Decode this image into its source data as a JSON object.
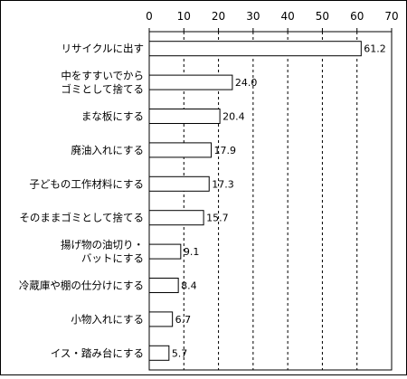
{
  "chart_data": {
    "type": "bar",
    "orientation": "horizontal",
    "title": "",
    "xlabel": "",
    "ylabel": "",
    "xlim": [
      0,
      70
    ],
    "ticks": [
      0,
      10,
      20,
      30,
      40,
      50,
      60,
      70
    ],
    "tick_labels": [
      "0",
      "10",
      "20",
      "30",
      "40",
      "50",
      "60",
      "70"
    ],
    "categories": [
      [
        "リサイクルに出す"
      ],
      [
        "中をすすいでから",
        "ゴミとして捨てる"
      ],
      [
        "まな板にする"
      ],
      [
        "廃油入れにする"
      ],
      [
        "子どもの工作材料にする"
      ],
      [
        "そのままゴミとして捨てる"
      ],
      [
        "揚げ物の油切り・",
        "バットにする"
      ],
      [
        "冷蔵庫や棚の仕分けにする"
      ],
      [
        "小物入れにする"
      ],
      [
        "イス・踏み台にする"
      ]
    ],
    "values": [
      61.2,
      24.0,
      20.4,
      17.9,
      17.3,
      15.7,
      9.1,
      8.4,
      6.7,
      5.7
    ],
    "value_labels": [
      "61.2",
      "24.0",
      "20.4",
      "17.9",
      "17.3",
      "15.7",
      "9.1",
      "8.4",
      "6.7",
      "5.7"
    ],
    "grid": "vertical dashed",
    "legend": "none",
    "colors": {
      "bar": "#ffffff",
      "bar_stroke": "#000000",
      "grid": "#000000"
    }
  }
}
